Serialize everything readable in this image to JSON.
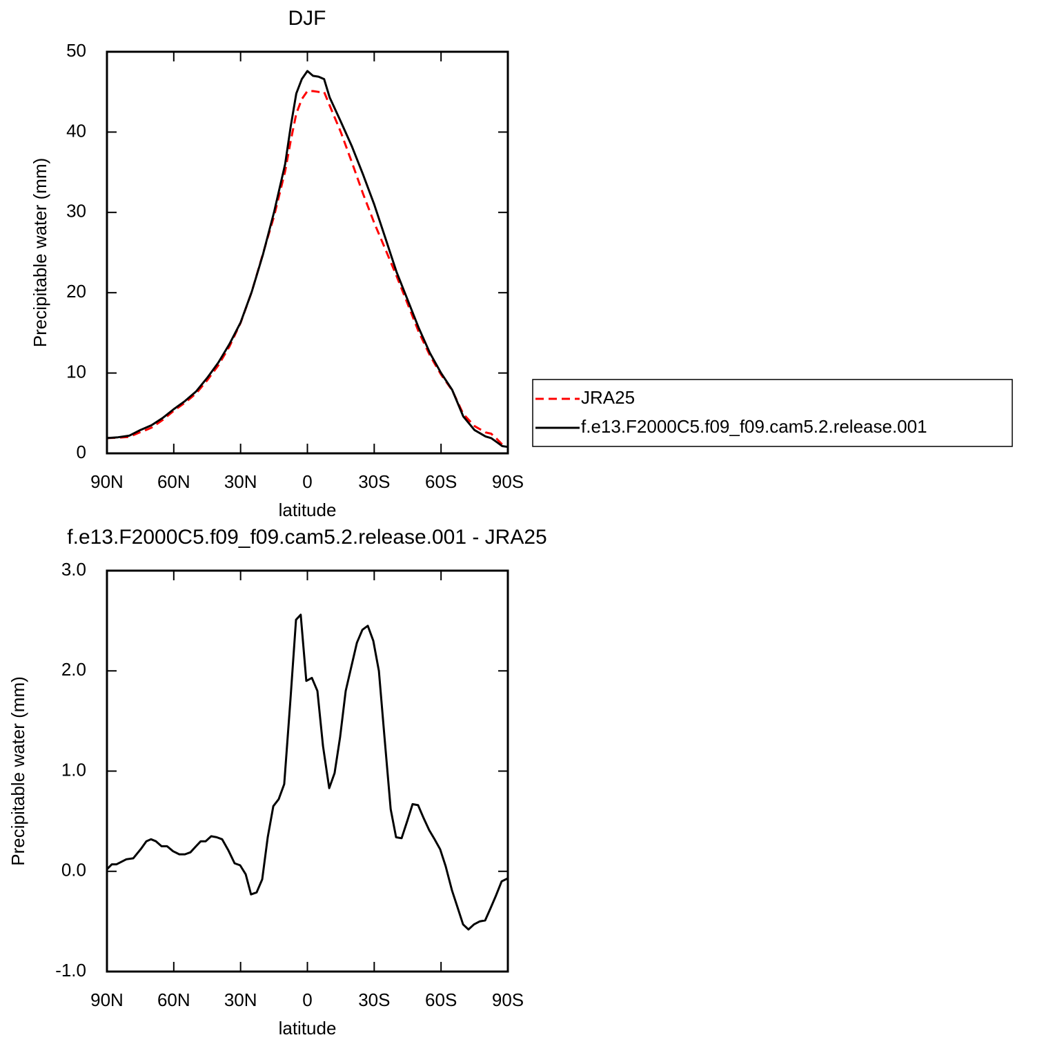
{
  "chart_data": [
    {
      "type": "line",
      "title": "DJF",
      "xlabel": "latitude",
      "ylabel": "Precipitable water (mm)",
      "x": [
        90,
        85,
        80,
        75,
        72.5,
        70,
        65,
        60,
        55,
        50,
        45,
        40,
        35,
        30,
        25,
        20,
        15,
        10,
        7.5,
        5,
        2.5,
        0,
        -2.5,
        -5,
        -7.5,
        -10,
        -15,
        -20,
        -25,
        -30,
        -35,
        -40,
        -45,
        -50,
        -55,
        -60,
        -65,
        -70,
        -75,
        -80,
        -82.5,
        -85,
        -87.5,
        -90
      ],
      "xlim": [
        90,
        -90
      ],
      "xticks": [
        {
          "value": 90,
          "label": "90N"
        },
        {
          "value": 60,
          "label": "60N"
        },
        {
          "value": 30,
          "label": "30N"
        },
        0,
        {
          "value": -30,
          "label": "30S"
        },
        {
          "value": -60,
          "label": "60S"
        },
        {
          "value": -90,
          "label": "90S"
        }
      ],
      "ylim": [
        0,
        50
      ],
      "yticks": [
        0,
        10,
        20,
        30,
        40,
        50
      ],
      "legend": "right",
      "series": [
        {
          "name": "JRA25",
          "color": "#ff0000",
          "dash": "dashed",
          "values": [
            1.9,
            1.95,
            2.05,
            2.65,
            2.9,
            3.2,
            4.15,
            5.3,
            6.3,
            7.45,
            9.1,
            10.95,
            13.3,
            16.25,
            20.1,
            24.8,
            29.5,
            35.1,
            38.9,
            42.3,
            44.1,
            45.1,
            45.1,
            45.0,
            45.0,
            43.3,
            40.0,
            36.2,
            32.3,
            28.7,
            25.4,
            22.1,
            18.6,
            15.1,
            12.2,
            9.8,
            7.85,
            4.9,
            3.4,
            2.6,
            2.45,
            1.8,
            1.1,
            0.8
          ]
        },
        {
          "name": "f.e13.F2000C5.f09_f09.cam5.2.release.001",
          "color": "#000000",
          "values": [
            1.9,
            2.0,
            2.2,
            2.9,
            3.2,
            3.5,
            4.4,
            5.5,
            6.5,
            7.7,
            9.4,
            11.3,
            13.6,
            16.3,
            20.1,
            24.7,
            30.0,
            36.0,
            40.7,
            44.8,
            46.6,
            47.6,
            47.0,
            46.9,
            46.6,
            44.3,
            41.3,
            38.2,
            34.7,
            31.0,
            26.8,
            22.6,
            19.1,
            15.6,
            12.5,
            10.0,
            7.9,
            4.6,
            2.9,
            2.1,
            1.9,
            1.4,
            0.9,
            0.8
          ]
        }
      ]
    },
    {
      "type": "line",
      "title": "f.e13.F2000C5.f09_f09.cam5.2.release.001 - JRA25",
      "xlabel": "latitude",
      "ylabel": "Precipitable water (mm)",
      "x": [
        90,
        87.8,
        85.7,
        81.3,
        78.2,
        74.5,
        72.3,
        70.2,
        68,
        65.5,
        63,
        60.3,
        57.5,
        55,
        52.5,
        50,
        47.9,
        45.7,
        43.2,
        40.7,
        38.3,
        35.5,
        32.7,
        30.2,
        27.7,
        25.3,
        22.8,
        20.3,
        17.8,
        15.3,
        12.9,
        10.4,
        7.6,
        5.1,
        3,
        0.5,
        -2,
        -4.5,
        -7,
        -9.8,
        -12.2,
        -14.7,
        -17.2,
        -20,
        -22.2,
        -24.7,
        -27.1,
        -29.6,
        -32.1,
        -34.6,
        -37.4,
        -39.8,
        -42.3,
        -44.8,
        -47.2,
        -49.7,
        -52.2,
        -54.7,
        -57.1,
        -59.6,
        -62.1,
        -64.9,
        -67.4,
        -69.9,
        -72.3,
        -74.8,
        -77.3,
        -79.8,
        -82.2,
        -84.7,
        -87.2,
        -90
      ],
      "xlim": [
        90,
        -90
      ],
      "xticks": [
        {
          "value": 90,
          "label": "90N"
        },
        {
          "value": 60,
          "label": "60N"
        },
        {
          "value": 30,
          "label": "30N"
        },
        0,
        {
          "value": -30,
          "label": "30S"
        },
        {
          "value": -60,
          "label": "60S"
        },
        {
          "value": -90,
          "label": "90S"
        }
      ],
      "ylim": [
        -1,
        3
      ],
      "yticks": [
        {
          "value": -1,
          "label": "-1.0"
        },
        {
          "value": 0,
          "label": "0.0"
        },
        {
          "value": 1,
          "label": "1.0"
        },
        {
          "value": 2,
          "label": "2.0"
        },
        {
          "value": 3,
          "label": "3.0"
        }
      ],
      "series": [
        {
          "color": "#000000",
          "values": [
            0.02,
            0.07,
            0.07,
            0.12,
            0.13,
            0.23,
            0.3,
            0.32,
            0.3,
            0.25,
            0.25,
            0.2,
            0.17,
            0.17,
            0.19,
            0.25,
            0.3,
            0.3,
            0.35,
            0.34,
            0.32,
            0.21,
            0.08,
            0.06,
            -0.03,
            -0.23,
            -0.21,
            -0.08,
            0.34,
            0.65,
            0.72,
            0.87,
            1.72,
            2.51,
            2.56,
            1.9,
            1.93,
            1.8,
            1.25,
            0.83,
            0.98,
            1.34,
            1.8,
            2.07,
            2.28,
            2.41,
            2.45,
            2.3,
            2.0,
            1.34,
            0.62,
            0.34,
            0.33,
            0.5,
            0.67,
            0.66,
            0.53,
            0.41,
            0.32,
            0.22,
            0.05,
            -0.19,
            -0.36,
            -0.53,
            -0.58,
            -0.53,
            -0.5,
            -0.49,
            -0.37,
            -0.24,
            -0.1,
            -0.07
          ]
        }
      ]
    }
  ]
}
